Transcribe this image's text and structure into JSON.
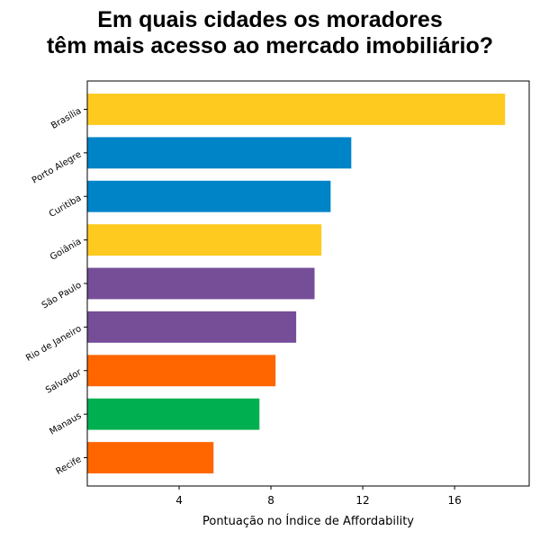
{
  "chart_data": {
    "type": "bar",
    "orientation": "horizontal",
    "title_lines": [
      "Em quais cidades os moradores",
      "têm mais acesso ao mercado imobiliário?"
    ],
    "xlabel": "Pontuação no Índice de Affordability",
    "ylabel": "",
    "categories": [
      "Brasília",
      "Porto Alegre",
      "Curitiba",
      "Goiânia",
      "São Paulo",
      "Rio de Janeiro",
      "Salvador",
      "Manaus",
      "Recife"
    ],
    "values": [
      18.2,
      11.5,
      10.6,
      10.2,
      9.9,
      9.1,
      8.2,
      7.5,
      5.5
    ],
    "colors": [
      "#FFCA1F",
      "#0084C8",
      "#0084C8",
      "#FFCA1F",
      "#764E98",
      "#764E98",
      "#FF6600",
      "#00B050",
      "#FF6600"
    ],
    "xticks": [
      4,
      8,
      12,
      16
    ],
    "xlim": [
      0,
      19.25
    ],
    "grid": false
  }
}
